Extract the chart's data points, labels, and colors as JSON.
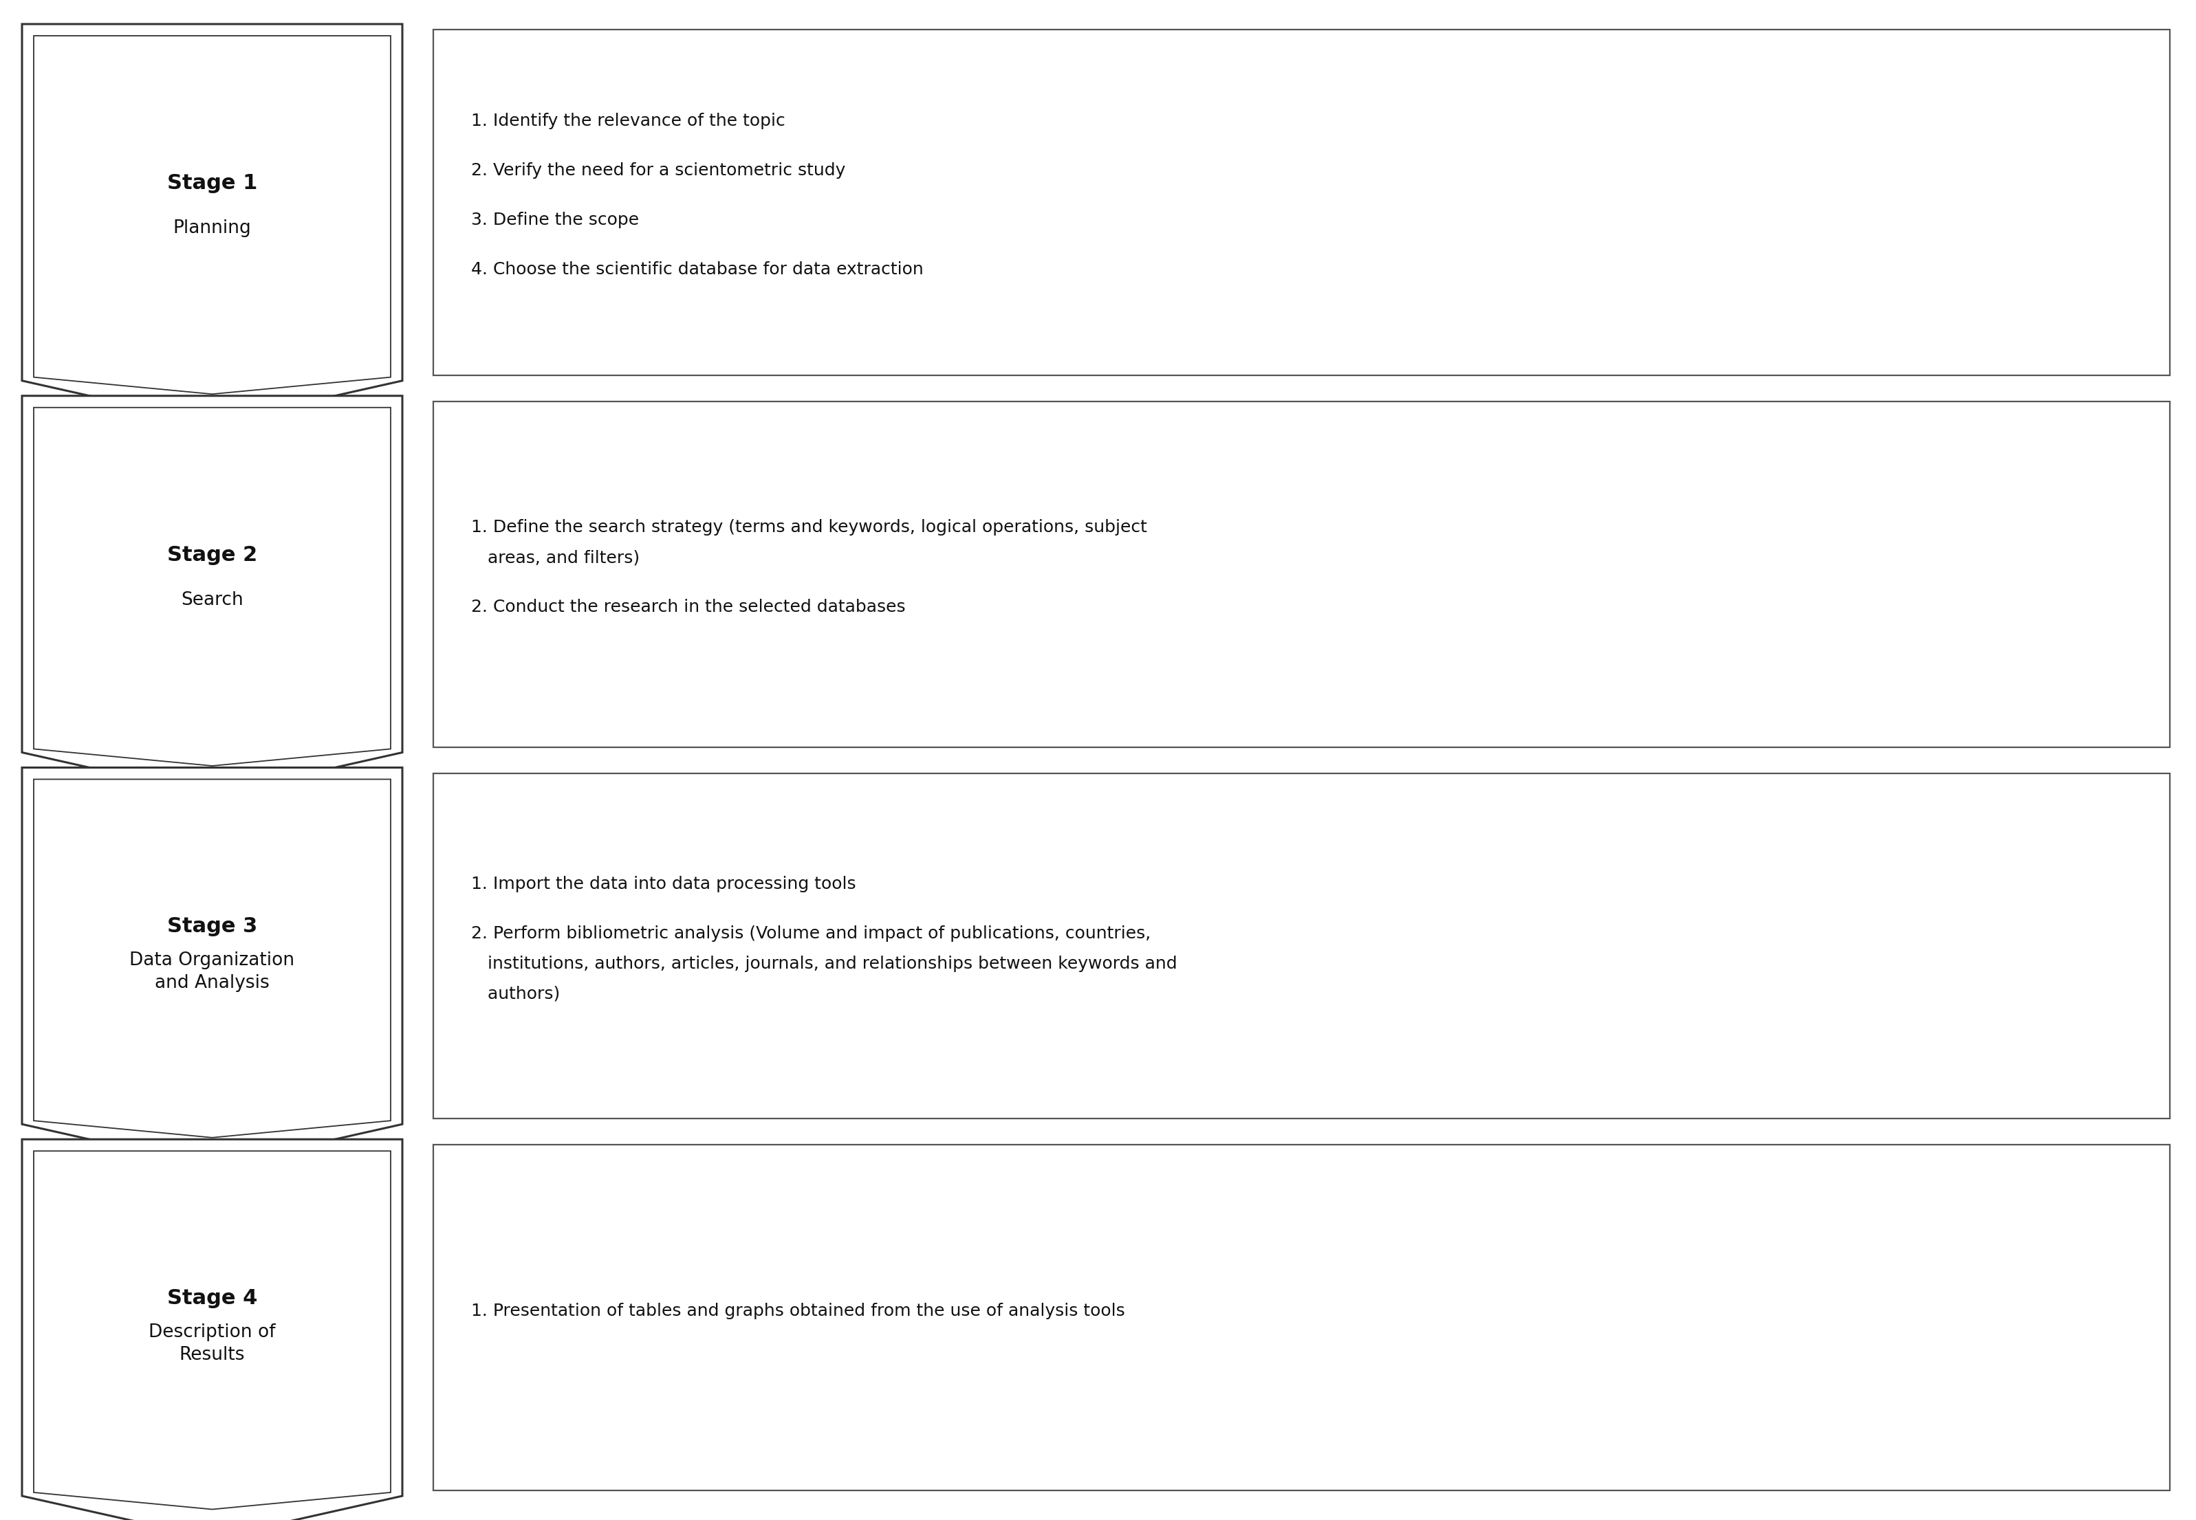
{
  "stages": [
    {
      "title": "Stage 1",
      "subtitle": "Planning",
      "items": [
        "1. Identify the relevance of the topic",
        "2. Verify the need for a scientometric study",
        "3. Define the scope",
        "4. Choose the scientific database for data extraction"
      ]
    },
    {
      "title": "Stage 2",
      "subtitle": "Search",
      "items": [
        "1. Define the search strategy (terms and keywords, logical operations, subject\n   areas, and filters)",
        "2. Conduct the research in the selected databases"
      ]
    },
    {
      "title": "Stage 3",
      "subtitle": "Data Organization\nand Analysis",
      "items": [
        "1. Import the data into data processing tools",
        "2. Perform bibliometric analysis (Volume and impact of publications, countries,\n   institutions, authors, articles, journals, and relationships between keywords and\n   authors)"
      ]
    },
    {
      "title": "Stage 4",
      "subtitle": "Description of\nResults",
      "items": [
        "1. Presentation of tables and graphs obtained from the use of analysis tools"
      ]
    }
  ],
  "bg_color": "#ffffff",
  "chevron_fill": "#ffffff",
  "chevron_edge": "#333333",
  "box_fill": "#ffffff",
  "box_edge": "#555555",
  "title_fontsize": 22,
  "subtitle_fontsize": 19,
  "item_fontsize": 18
}
